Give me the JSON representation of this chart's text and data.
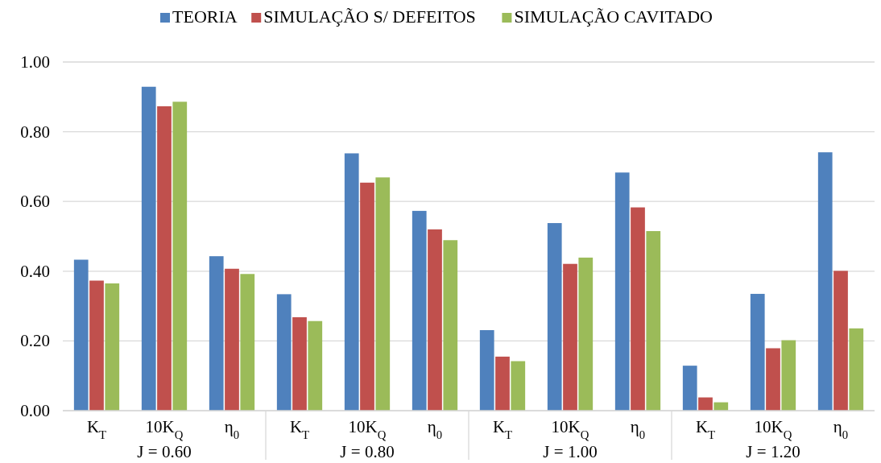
{
  "chart_data": {
    "type": "bar",
    "categories": [
      "K$_{T}$",
      "10K$_{Q}$",
      "η$_{0}$",
      "K$_{T}$",
      "10K$_{Q}$",
      "η$_{0}$",
      "K$_{T}$",
      "10K$_{Q}$",
      "η$_{0}$",
      "K$_{T}$",
      "10K$_{Q}$",
      "η$_{0}$"
    ],
    "series": [
      {
        "name": "TEORIA",
        "color": "#4f81bd",
        "values": [
          0.433,
          0.929,
          0.443,
          0.334,
          0.738,
          0.573,
          0.231,
          0.538,
          0.683,
          0.129,
          0.335,
          0.741
        ]
      },
      {
        "name": "SIMULAÇÃO S/ DEFEITOS",
        "color": "#c0504d",
        "values": [
          0.373,
          0.873,
          0.407,
          0.268,
          0.654,
          0.52,
          0.155,
          0.421,
          0.583,
          0.038,
          0.179,
          0.401
        ]
      },
      {
        "name": "SIMULAÇÃO CAVITADO",
        "color": "#9bbb59",
        "values": [
          0.365,
          0.886,
          0.392,
          0.257,
          0.669,
          0.489,
          0.142,
          0.439,
          0.515,
          0.024,
          0.202,
          0.236
        ]
      }
    ],
    "annotations": [
      "J = 0.60",
      "J = 0.80",
      "J = 1.00",
      "J = 1.20"
    ],
    "ylim": [
      0,
      1
    ],
    "yticks": [
      {
        "value": 0,
        "label": "0.00"
      },
      {
        "value": 0.2,
        "label": "0.20"
      },
      {
        "value": 0.4,
        "label": "0.40"
      },
      {
        "value": 0.6,
        "label": "0.60"
      },
      {
        "value": 0.8,
        "label": "0.80"
      },
      {
        "value": 1,
        "label": "1.00"
      }
    ],
    "grid": "y",
    "legend": "top"
  }
}
